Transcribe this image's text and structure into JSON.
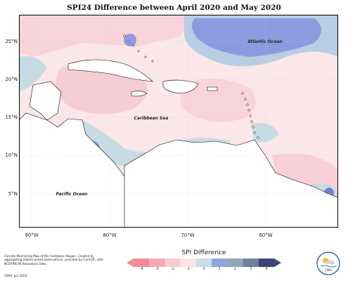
{
  "title": "SPI24 Difference between April 2020 and May 2020",
  "map": {
    "lat_labels": [
      "25°N",
      "20°N",
      "15°N",
      "10°N",
      "5°N"
    ],
    "lon_labels": [
      "90°W",
      "80°W",
      "70°W",
      "60°W"
    ],
    "region_labels": {
      "atlantic": "Atlantic Ocean",
      "caribbean": "Caribbean Sea",
      "pacific": "Pacific Ocean"
    },
    "colors": {
      "ocean_light_pink": "#fbe6ea",
      "pink": "#f7c9d1",
      "light_blue": "#c6dbe3",
      "blue": "#8c9be0",
      "dark_blue": "#6f7fd3",
      "land": "#ffffff"
    }
  },
  "legend": {
    "title": "SPI Difference",
    "ticks": [
      "-4",
      "-3",
      "-2",
      "-1",
      "0",
      "1",
      "2",
      "3",
      "4"
    ],
    "colors": [
      "#f28b96",
      "#f5a8b1",
      "#f8cbd2",
      "#fbe3e7",
      "#c8dde5",
      "#8ea5dc",
      "#8fa7b7",
      "#6f819a",
      "#3b4478"
    ]
  },
  "footer": {
    "description": "Climate Monitoring Map of the Caribbean Region. Created by aggregating station based observations, provided by CariCOF, with NCEP/NCAR Reanalysis Data.",
    "credit": "CIMH: Jun-2020"
  },
  "logo": {
    "text": "CIMH"
  }
}
